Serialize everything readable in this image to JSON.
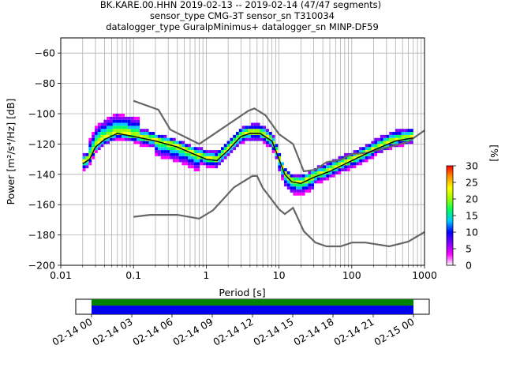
{
  "chart_data": {
    "type": "heatmap",
    "title_lines": [
      "BK.KARE.00.HHN   2019-02-13 -- 2019-02-14  (47/47 segments)",
      "sensor_type CMG-3T sensor_sn T310034",
      "datalogger_type GuralpMinimus+ datalogger_sn MINP-DF59"
    ],
    "xlabel": "Period [s]",
    "ylabel": "Power [m²/s⁴/Hz] [dB]",
    "x_scale": "log",
    "xlim": [
      0.01,
      1000
    ],
    "ylim": [
      -200,
      -50
    ],
    "x_ticks": [
      {
        "value": 0.01,
        "label": "0.01"
      },
      {
        "value": 0.1,
        "label": "0.1"
      },
      {
        "value": 1,
        "label": "1"
      },
      {
        "value": 10,
        "label": "10"
      },
      {
        "value": 100,
        "label": "100"
      },
      {
        "value": 1000,
        "label": "1000"
      }
    ],
    "y_ticks": [
      {
        "value": -60,
        "label": "−60"
      },
      {
        "value": -80,
        "label": "−80"
      },
      {
        "value": -100,
        "label": "−100"
      },
      {
        "value": -120,
        "label": "−120"
      },
      {
        "value": -140,
        "label": "−140"
      },
      {
        "value": -160,
        "label": "−160"
      },
      {
        "value": -180,
        "label": "−180"
      },
      {
        "value": -200,
        "label": "−200"
      }
    ],
    "grid": true,
    "noise_models": {
      "color": "#666666",
      "high": [
        [
          0.1,
          -91.5
        ],
        [
          0.22,
          -97.4
        ],
        [
          0.32,
          -110.5
        ],
        [
          0.8,
          -120
        ],
        [
          3.8,
          -98
        ],
        [
          4.6,
          -96.5
        ],
        [
          6.5,
          -101
        ],
        [
          10,
          -113.5
        ],
        [
          15.6,
          -120
        ],
        [
          21.9,
          -138
        ],
        [
          31.6,
          -137
        ],
        [
          45,
          -132
        ],
        [
          70,
          -130.5
        ],
        [
          101,
          -126.5
        ],
        [
          154,
          -126
        ],
        [
          328,
          -122
        ],
        [
          600,
          -118.5
        ],
        [
          1000,
          -111
        ]
      ],
      "low": [
        [
          0.1,
          -168
        ],
        [
          0.17,
          -166.7
        ],
        [
          0.4,
          -166.7
        ],
        [
          0.8,
          -169.2
        ],
        [
          1.24,
          -163.7
        ],
        [
          2.4,
          -148.6
        ],
        [
          4.3,
          -141.1
        ],
        [
          5.0,
          -141.1
        ],
        [
          6.0,
          -149.0
        ],
        [
          10,
          -163.0
        ],
        [
          12,
          -166.2
        ],
        [
          15.6,
          -162.1
        ],
        [
          21.9,
          -177.5
        ],
        [
          31.6,
          -185.0
        ],
        [
          45,
          -187.5
        ],
        [
          70,
          -187.5
        ],
        [
          101,
          -185.0
        ],
        [
          154,
          -185.0
        ],
        [
          328,
          -187.5
        ],
        [
          600,
          -184.4
        ],
        [
          1000,
          -178
        ]
      ]
    },
    "mode_curve": [
      [
        0.02,
        -133
      ],
      [
        0.025,
        -130
      ],
      [
        0.03,
        -122
      ],
      [
        0.04,
        -117
      ],
      [
        0.06,
        -113
      ],
      [
        0.1,
        -115
      ],
      [
        0.2,
        -118
      ],
      [
        0.4,
        -122
      ],
      [
        0.7,
        -127
      ],
      [
        1.0,
        -130
      ],
      [
        1.4,
        -131
      ],
      [
        2.0,
        -124
      ],
      [
        3.0,
        -115
      ],
      [
        4.0,
        -113
      ],
      [
        5.5,
        -113
      ],
      [
        8,
        -118
      ],
      [
        10,
        -130
      ],
      [
        12,
        -140
      ],
      [
        15,
        -145
      ],
      [
        20,
        -146
      ],
      [
        30,
        -142
      ],
      [
        50,
        -138
      ],
      [
        100,
        -131
      ],
      [
        200,
        -124
      ],
      [
        400,
        -118
      ],
      [
        700,
        -116
      ]
    ],
    "colorbar": {
      "label": "[%]",
      "min": 0,
      "max": 30,
      "ticks": [
        0,
        5,
        10,
        15,
        20,
        25,
        30
      ],
      "colors": [
        "#ffffff",
        "#ff00ff",
        "#8000ff",
        "#0000ff",
        "#00c8ff",
        "#00ff64",
        "#9bff00",
        "#ffff00",
        "#ff9600",
        "#ff0000"
      ]
    },
    "coverage": {
      "tick_labels": [
        "02-14 00",
        "02-14 03",
        "02-14 06",
        "02-14 09",
        "02-14 12",
        "02-14 15",
        "02-14 18",
        "02-14 21",
        "02-15 00"
      ],
      "data_color": "#0000ee",
      "psd_color": "#008000"
    }
  }
}
